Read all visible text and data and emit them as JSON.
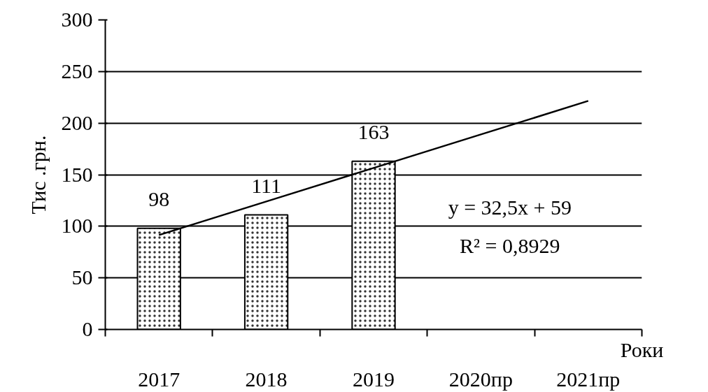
{
  "chart_data": {
    "type": "bar",
    "categories": [
      "2017",
      "2018",
      "2019",
      "2020пр",
      "2021пр"
    ],
    "series": [
      {
        "color": "#ffffff",
        "values": [
          98,
          111,
          163,
          null,
          null
        ],
        "value_labels": [
          "98",
          "111",
          "163",
          null,
          null
        ]
      },
      {
        "type": "line",
        "color": "#000000",
        "values": [
          91.5,
          124,
          156.5,
          189,
          221.5
        ]
      }
    ],
    "xlabel": "Роки",
    "ylabel": "Тис .грн.",
    "ylim": [
      0,
      300
    ],
    "yticks": [
      0,
      50,
      100,
      150,
      200,
      250,
      300
    ],
    "grid": "y",
    "marker": "none",
    "line_style": "solid",
    "annotations": [
      "y = 32,5x + 59",
      "R² = 0,8929"
    ]
  }
}
